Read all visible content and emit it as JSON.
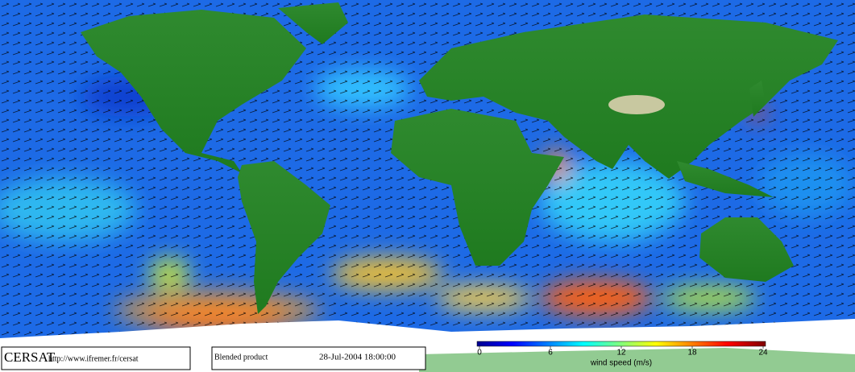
{
  "footer": {
    "logo": "CERSAT",
    "url": "http://www.ifremer.fr/cersat",
    "product": "Blended product",
    "date": "28-Jul-2004 18:00:00"
  },
  "colorbar": {
    "ticks": [
      0,
      6,
      12,
      18,
      24
    ],
    "label": "wind speed (m/s)"
  }
}
